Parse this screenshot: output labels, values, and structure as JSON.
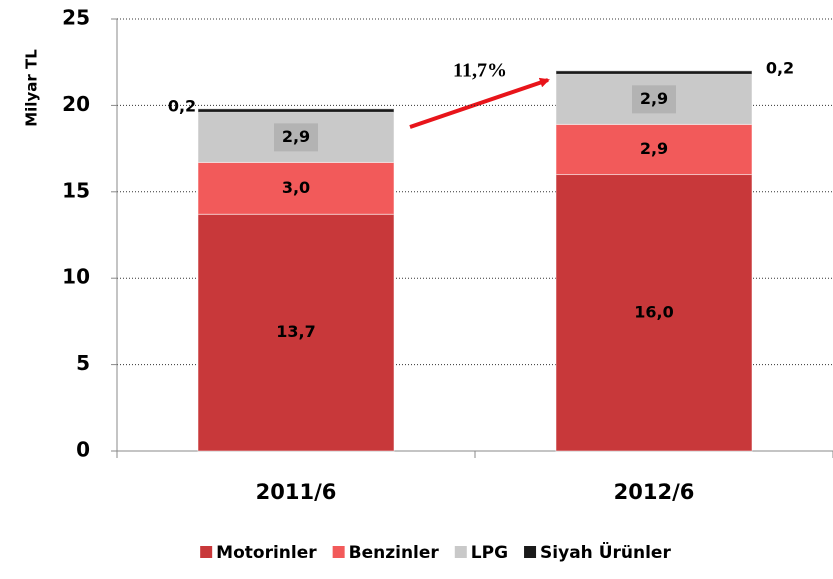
{
  "chart_data": {
    "type": "stacked_bar",
    "y_label": "Milyar TL",
    "categories": [
      "2011/6",
      "2012/6"
    ],
    "series": [
      {
        "name": "Motorinler",
        "color": "#c8383a",
        "values": [
          13.7,
          16.0
        ],
        "value_labels": [
          "13,7",
          "16,0"
        ]
      },
      {
        "name": "Benzinler",
        "color": "#f25a5a",
        "values": [
          3.0,
          2.9
        ],
        "value_labels": [
          "3,0",
          "2,9"
        ]
      },
      {
        "name": "LPG",
        "color": "#c9c9c9",
        "values": [
          2.9,
          2.9
        ],
        "value_labels": [
          "2,9",
          "2,9"
        ]
      },
      {
        "name": "Siyah Ürünler",
        "color": "#1a1a1a",
        "values": [
          0.2,
          0.2
        ],
        "value_labels": [
          "0,2",
          "0,2"
        ]
      }
    ],
    "annotation": "11,7%",
    "ylim": [
      0,
      25
    ],
    "yticks": [
      0,
      5,
      10,
      15,
      20,
      25
    ],
    "grid": true,
    "legend": "bottom"
  }
}
